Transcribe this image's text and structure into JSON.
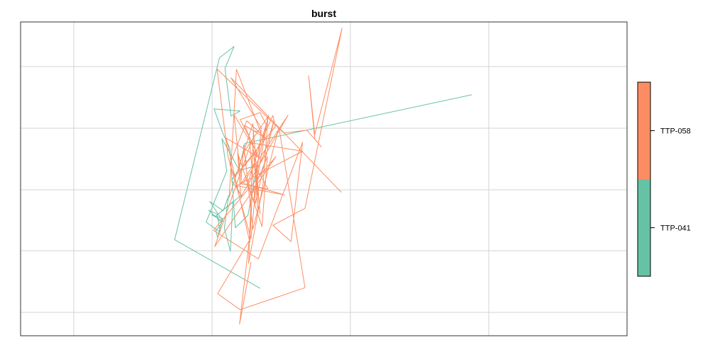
{
  "chart_data": {
    "type": "line",
    "title": "burst",
    "xlabel": "",
    "ylabel": "",
    "grid": true,
    "legend_placement": "right",
    "legend_style": "color-key",
    "xlim": [
      0,
      100
    ],
    "ylim": [
      0,
      100
    ],
    "series": [
      {
        "name": "TTP-041",
        "color": "#66C2A5",
        "x": [
          74.4,
          37.0,
          36.0,
          33.2,
          34.0,
          30.6,
          32.9,
          32.4,
          31.0,
          33.2,
          32.2,
          32.5,
          33.3,
          31.5,
          33.4,
          31.2,
          33.4,
          34.3,
          33.6,
          34.6,
          35.0,
          32.3,
          36.4,
          34.8,
          35.8,
          39.0,
          37.5,
          35.4,
          34.5,
          33.3,
          31.9,
          36.2,
          34.7,
          33.7,
          35.2,
          32.8,
          25.4,
          39.5
        ],
        "y": [
          76.8,
          61.3,
          53.0,
          62.8,
          52.5,
          36.2,
          33.0,
          38.8,
          40.0,
          36.0,
          33.5,
          31.2,
          37.4,
          38.6,
          36.4,
          42.8,
          39.8,
          44.6,
          34.3,
          26.9,
          42.7,
          38.3,
          44.8,
          49.5,
          52.5,
          54.3,
          38.4,
          34.4,
          59.7,
          64.8,
          72.3,
          71.6,
          70.0,
          85.2,
          92.2,
          88.6,
          30.6,
          15.1
        ]
      },
      {
        "name": "TTP-058",
        "color": "#FC8D62",
        "x": [
          52.9,
          34.7,
          39.7,
          38.0,
          34.2,
          32.4,
          43.4,
          47.2,
          49.6,
          48.5,
          47.5,
          48.5,
          53.0,
          46.9,
          41.6,
          44.6,
          46.5,
          39.2,
          31.8,
          42.1,
          32.0,
          38.0,
          46.5,
          35.6,
          43.5,
          36.7,
          44.1,
          36.3,
          35.8,
          39.8,
          40.7,
          38.2,
          37.8,
          33.9,
          39.2,
          36.9,
          40.6,
          37.3,
          34.5,
          35.3,
          42.0,
          41.6,
          38.8,
          36.5,
          37.3,
          36.8,
          40.9,
          38.8,
          39.1,
          38.4,
          39.5,
          38.3,
          34.4,
          35.6,
          39.6,
          38.4,
          37.6,
          40.0,
          40.8,
          38.4,
          37.4,
          40.5,
          39.5,
          36.2,
          37.7,
          38.7,
          41.8,
          40.2,
          39.0,
          40.8,
          36.4,
          35.2,
          38.9,
          38.6,
          36.3,
          36.8,
          38.3,
          42.6,
          46.9,
          36.2,
          32.5,
          37.7,
          36.1,
          38.0
        ],
        "y": [
          45.7,
          82.2,
          66.2,
          31.0,
          57.2,
          85.0,
          64.6,
          65.5,
          60.2,
          62.7,
          82.9,
          64.1,
          98.0,
          40.6,
          35.2,
          30.0,
          61.7,
          24.5,
          33.6,
          57.1,
          28.4,
          61.5,
          58.8,
          47.8,
          44.9,
          48.7,
          70.3,
          44.2,
          58.2,
          34.8,
          57.1,
          45.4,
          29.8,
          63.0,
          56.9,
          67.1,
          62.7,
          68.5,
          54.6,
          50.7,
          66.6,
          70.2,
          58.6,
          53.4,
          54.9,
          58.4,
          70.2,
          52.6,
          40.5,
          59.4,
          38.8,
          67.6,
          44.2,
          84.9,
          64.8,
          65.3,
          23.1,
          48.5,
          70.0,
          43.0,
          48.1,
          67.3,
          71.1,
          68.9,
          63.4,
          42.0,
          68.8,
          58.2,
          52.9,
          46.8,
          48.4,
          70.4,
          58.6,
          55.2,
          48.3,
          60.8,
          34.0,
          66.4,
          15.3,
          8.3,
          13.4,
          30.3,
          3.7,
          23.5
        ]
      }
    ]
  }
}
